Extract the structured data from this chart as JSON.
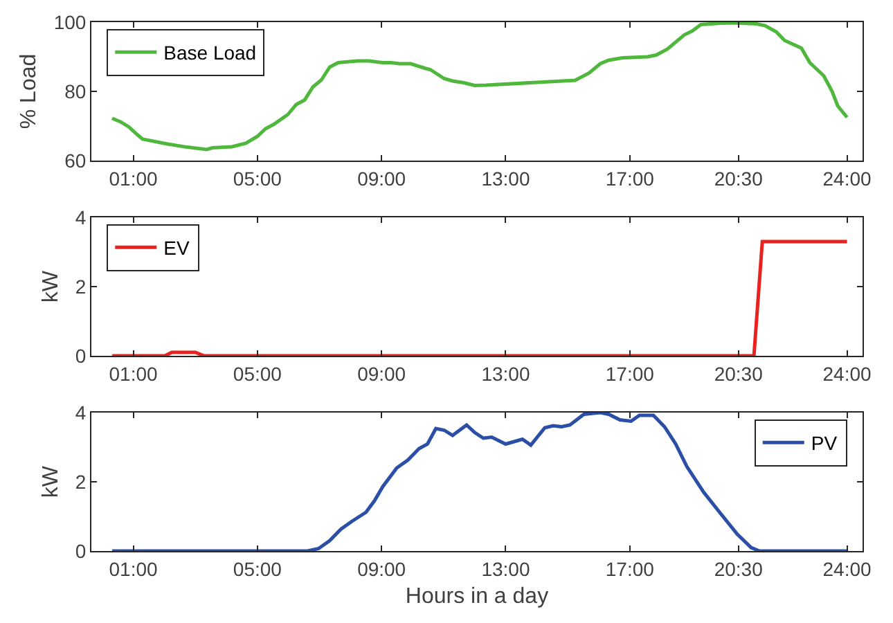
{
  "chart_data": [
    {
      "type": "line",
      "ylabel": "% Load",
      "legend": "top left",
      "grid": false,
      "xlim": [
        -0.35,
        24.5
      ],
      "xticks": [
        {
          "value": 1,
          "label": "01:00"
        },
        {
          "value": 5,
          "label": "05:00"
        },
        {
          "value": 9,
          "label": "09:00"
        },
        {
          "value": 13,
          "label": "13:00"
        },
        {
          "value": 17,
          "label": "17:00"
        },
        {
          "value": 20.5,
          "label": "20:30"
        },
        {
          "value": 24,
          "label": "24:00"
        }
      ],
      "ylim": [
        60,
        100
      ],
      "yticks": [
        60,
        80,
        100
      ],
      "series": [
        {
          "name": "Base Load",
          "color": "#4fb83c",
          "x": [
            0.32,
            0.59,
            0.86,
            1.13,
            1.3,
            2.1,
            2.65,
            3.37,
            3.55,
            4.18,
            4.63,
            5.0,
            5.26,
            5.53,
            5.98,
            6.25,
            6.52,
            6.79,
            7.06,
            7.33,
            7.6,
            8.23,
            8.59,
            9.04,
            9.31,
            9.58,
            9.94,
            10.39,
            10.57,
            11.02,
            11.29,
            11.65,
            12.0,
            12.37,
            13.8,
            15.24,
            15.69,
            16.05,
            16.32,
            16.77,
            17.58,
            17.85,
            18.21,
            18.75,
            19.02,
            19.29,
            19.92,
            20.4,
            21.09,
            21.36,
            21.72,
            21.99,
            22.53,
            22.8,
            23.25,
            23.52,
            23.7,
            24.0
          ],
          "values": [
            72.2,
            71.2,
            69.7,
            67.5,
            66.2,
            64.8,
            64,
            63.2,
            63.7,
            64,
            65,
            67,
            69.2,
            70.5,
            73.3,
            76.2,
            77.5,
            81.3,
            83.3,
            87,
            88.3,
            88.8,
            88.8,
            88.3,
            88.3,
            88,
            88,
            86.7,
            86.3,
            83.7,
            83,
            82.5,
            81.7,
            81.8,
            82.5,
            83.2,
            85.3,
            88,
            89,
            89.7,
            90,
            90.5,
            92.2,
            96.3,
            97.5,
            99.3,
            99.7,
            99.8,
            99.5,
            99,
            97.2,
            94.7,
            92.5,
            88.3,
            84.5,
            80,
            75.8,
            72.5
          ]
        }
      ]
    },
    {
      "type": "line",
      "ylabel": "kW",
      "legend": "top left",
      "grid": false,
      "xlim": [
        -0.35,
        24.5
      ],
      "xticks": [
        {
          "value": 1,
          "label": "01:00"
        },
        {
          "value": 5,
          "label": "05:00"
        },
        {
          "value": 9,
          "label": "09:00"
        },
        {
          "value": 13,
          "label": "13:00"
        },
        {
          "value": 17,
          "label": "17:00"
        },
        {
          "value": 20.5,
          "label": "20:30"
        },
        {
          "value": 24,
          "label": "24:00"
        }
      ],
      "ylim": [
        0,
        4
      ],
      "yticks": [
        0,
        2,
        4
      ],
      "series": [
        {
          "name": "EV",
          "color": "#e8221e",
          "x": [
            0.32,
            2.02,
            2.24,
            3.0,
            3.28,
            21.0,
            21.27,
            24.0
          ],
          "values": [
            0,
            0,
            0.1,
            0.1,
            0,
            0,
            3.3,
            3.3
          ]
        }
      ]
    },
    {
      "type": "line",
      "ylabel": "kW",
      "xlabel": "Hours in a day",
      "legend": "top right",
      "grid": false,
      "xlim": [
        -0.35,
        24.5
      ],
      "xticks": [
        {
          "value": 1,
          "label": "01:00"
        },
        {
          "value": 5,
          "label": "05:00"
        },
        {
          "value": 9,
          "label": "09:00"
        },
        {
          "value": 13,
          "label": "13:00"
        },
        {
          "value": 17,
          "label": "17:00"
        },
        {
          "value": 20.5,
          "label": "20:30"
        },
        {
          "value": 24,
          "label": "24:00"
        }
      ],
      "ylim": [
        0,
        4
      ],
      "yticks": [
        0,
        2,
        4
      ],
      "series": [
        {
          "name": "PV",
          "color": "#2b4ea6",
          "x": [
            0.32,
            6.61,
            6.97,
            7.33,
            7.69,
            8.05,
            8.5,
            8.77,
            9.04,
            9.49,
            9.85,
            10.21,
            10.48,
            10.75,
            11.02,
            11.29,
            11.74,
            12.01,
            12.28,
            12.55,
            13.0,
            13.54,
            13.81,
            14.26,
            14.53,
            14.8,
            15.07,
            15.52,
            16.05,
            16.32,
            16.68,
            17.04,
            17.31,
            17.76,
            18.12,
            18.48,
            18.84,
            19.38,
            19.92,
            20.46,
            20.91,
            21.18,
            24.0
          ],
          "values": [
            0,
            0,
            0.07,
            0.3,
            0.63,
            0.86,
            1.12,
            1.45,
            1.86,
            2.4,
            2.63,
            2.96,
            3.09,
            3.54,
            3.49,
            3.34,
            3.64,
            3.42,
            3.26,
            3.29,
            3.09,
            3.23,
            3.06,
            3.56,
            3.62,
            3.59,
            3.64,
            3.95,
            4.0,
            3.95,
            3.79,
            3.75,
            3.92,
            3.92,
            3.59,
            3.09,
            2.44,
            1.7,
            1.09,
            0.49,
            0.1,
            0,
            0
          ]
        }
      ]
    }
  ]
}
